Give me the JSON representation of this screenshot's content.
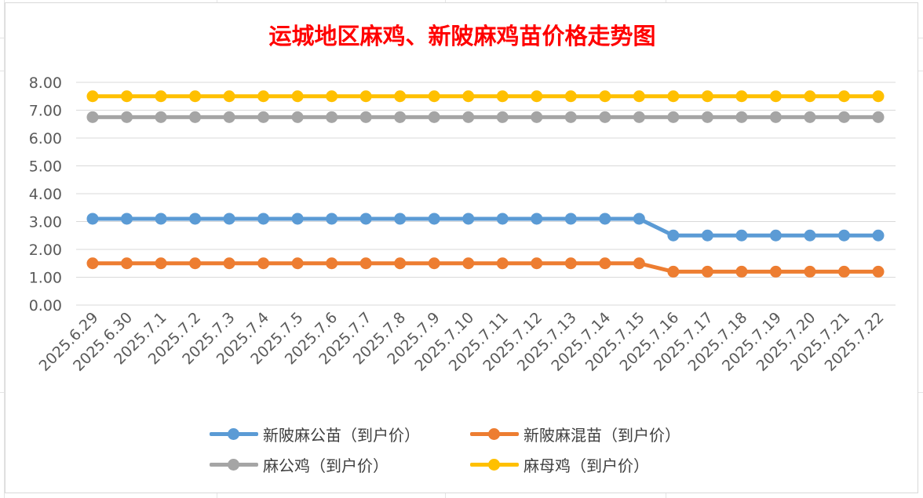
{
  "chart_data": {
    "type": "line",
    "title": "运城地区麻鸡、新陂麻鸡苗价格走势图",
    "xlabel": "",
    "ylabel": "",
    "ylim": [
      0,
      8
    ],
    "ytick_step": 1,
    "ytick_format": "0.00",
    "grid": "horizontal",
    "legend_position": "bottom",
    "categories": [
      "2025.6.29",
      "2025.6.30",
      "2025.7.1",
      "2025.7.2",
      "2025.7.3",
      "2025.7.4",
      "2025.7.5",
      "2025.7.6",
      "2025.7.7",
      "2025.7.8",
      "2025.7.9",
      "2025.7.10",
      "2025.7.11",
      "2025.7.12",
      "2025.7.13",
      "2025.7.14",
      "2025.7.15",
      "2025.7.16",
      "2025.7.17",
      "2025.7.18",
      "2025.7.19",
      "2025.7.20",
      "2025.7.21",
      "2025.7.22"
    ],
    "series": [
      {
        "name": "新陂麻公苗（到户价）",
        "color": "#5b9bd5",
        "values": [
          3.1,
          3.1,
          3.1,
          3.1,
          3.1,
          3.1,
          3.1,
          3.1,
          3.1,
          3.1,
          3.1,
          3.1,
          3.1,
          3.1,
          3.1,
          3.1,
          3.1,
          2.5,
          2.5,
          2.5,
          2.5,
          2.5,
          2.5,
          2.5
        ]
      },
      {
        "name": "新陂麻混苗（到户价）",
        "color": "#ed7d31",
        "values": [
          1.5,
          1.5,
          1.5,
          1.5,
          1.5,
          1.5,
          1.5,
          1.5,
          1.5,
          1.5,
          1.5,
          1.5,
          1.5,
          1.5,
          1.5,
          1.5,
          1.5,
          1.2,
          1.2,
          1.2,
          1.2,
          1.2,
          1.2,
          1.2
        ]
      },
      {
        "name": "麻公鸡（到户价）",
        "color": "#a5a5a5",
        "values": [
          6.75,
          6.75,
          6.75,
          6.75,
          6.75,
          6.75,
          6.75,
          6.75,
          6.75,
          6.75,
          6.75,
          6.75,
          6.75,
          6.75,
          6.75,
          6.75,
          6.75,
          6.75,
          6.75,
          6.75,
          6.75,
          6.75,
          6.75,
          6.75
        ]
      },
      {
        "name": "麻母鸡（到户价）",
        "color": "#ffc000",
        "values": [
          7.5,
          7.5,
          7.5,
          7.5,
          7.5,
          7.5,
          7.5,
          7.5,
          7.5,
          7.5,
          7.5,
          7.5,
          7.5,
          7.5,
          7.5,
          7.5,
          7.5,
          7.5,
          7.5,
          7.5,
          7.5,
          7.5,
          7.5,
          7.5
        ]
      }
    ]
  },
  "style": {
    "title_color": "#ff0000",
    "gridline_color": "#d9d9d9",
    "tick_label_color": "#595959"
  }
}
